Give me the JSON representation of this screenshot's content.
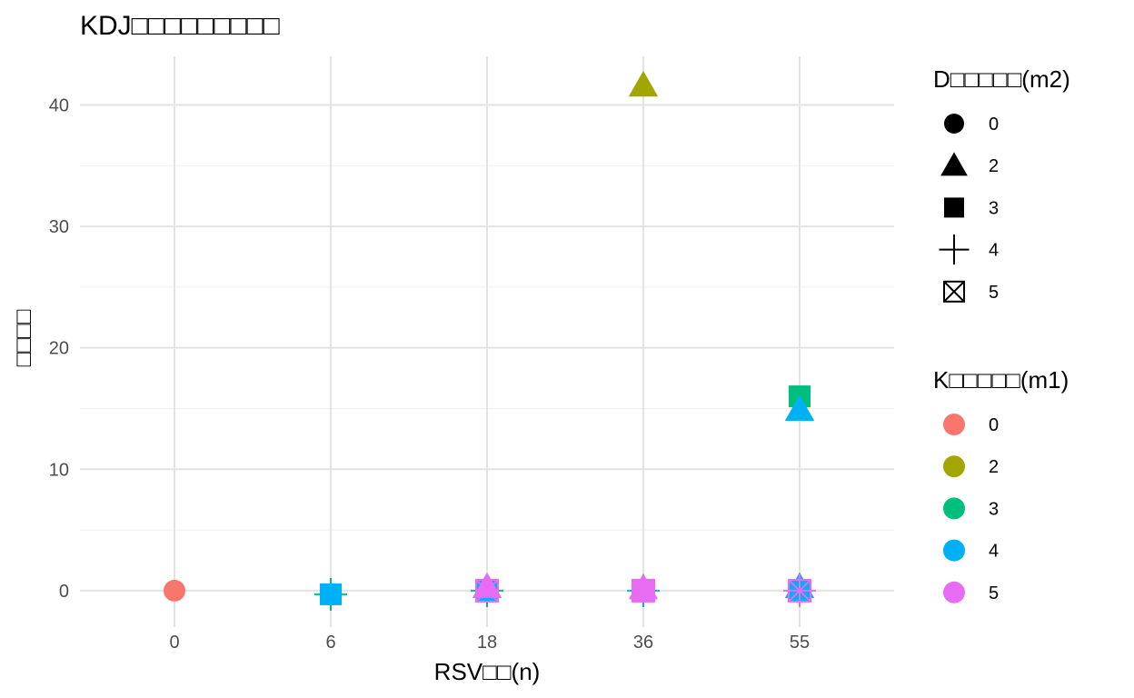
{
  "chart_data": {
    "type": "scatter",
    "title": "KDJ□□□□□□□□□",
    "xlabel": "RSV□□(n)",
    "ylabel": "□□□□",
    "x_categories": [
      "0",
      "6",
      "18",
      "36",
      "55"
    ],
    "ylim": [
      -3,
      44
    ],
    "y_ticks": [
      0,
      10,
      20,
      30,
      40
    ],
    "grid": true,
    "color_legend": {
      "title": "K□□□□□(m1)",
      "entries": [
        {
          "label": "0",
          "color": "#F8766D"
        },
        {
          "label": "2",
          "color": "#A3A500"
        },
        {
          "label": "3",
          "color": "#00BF7D"
        },
        {
          "label": "4",
          "color": "#00B0F6"
        },
        {
          "label": "5",
          "color": "#E76BF3"
        }
      ]
    },
    "shape_legend": {
      "title": "D□□□□□(m2)",
      "entries": [
        {
          "label": "0",
          "shape": "circle"
        },
        {
          "label": "2",
          "shape": "triangle"
        },
        {
          "label": "3",
          "shape": "square"
        },
        {
          "label": "4",
          "shape": "plus"
        },
        {
          "label": "5",
          "shape": "boxcross"
        }
      ]
    },
    "points": [
      {
        "x": "0",
        "y": 0,
        "m1": "0",
        "m2": "0"
      },
      {
        "x": "6",
        "y": -0.3,
        "m1": "3",
        "m2": "4"
      },
      {
        "x": "6",
        "y": -0.3,
        "m1": "4",
        "m2": "3"
      },
      {
        "x": "18",
        "y": 0,
        "m1": "3",
        "m2": "4"
      },
      {
        "x": "18",
        "y": 0,
        "m1": "4",
        "m2": "3"
      },
      {
        "x": "18",
        "y": 0.3,
        "m1": "5",
        "m2": "2"
      },
      {
        "x": "18",
        "y": 0,
        "m1": "5",
        "m2": "5"
      },
      {
        "x": "36",
        "y": 41.6,
        "m1": "2",
        "m2": "2"
      },
      {
        "x": "36",
        "y": 0,
        "m1": "4",
        "m2": "4"
      },
      {
        "x": "36",
        "y": 0,
        "m1": "4",
        "m2": "3"
      },
      {
        "x": "36",
        "y": 0.2,
        "m1": "5",
        "m2": "2"
      },
      {
        "x": "36",
        "y": 0,
        "m1": "5",
        "m2": "3"
      },
      {
        "x": "36",
        "y": 0,
        "m1": "5",
        "m2": "5"
      },
      {
        "x": "55",
        "y": 16,
        "m1": "3",
        "m2": "3"
      },
      {
        "x": "55",
        "y": 14.9,
        "m1": "4",
        "m2": "2"
      },
      {
        "x": "55",
        "y": 0.3,
        "m1": "4",
        "m2": "2"
      },
      {
        "x": "55",
        "y": 0,
        "m1": "4",
        "m2": "3"
      },
      {
        "x": "55",
        "y": 0,
        "m1": "5",
        "m2": "4"
      },
      {
        "x": "55",
        "y": 0,
        "m1": "5",
        "m2": "5"
      }
    ]
  }
}
